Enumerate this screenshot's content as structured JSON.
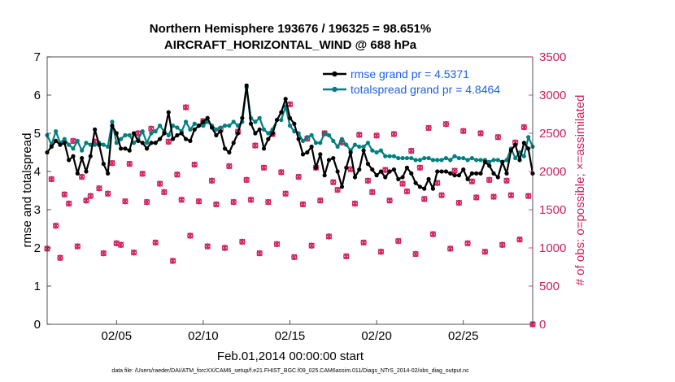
{
  "chart_data": {
    "type": "line",
    "title_line1": "Northern Hemisphere 193676 / 196325 = 98.651%",
    "title_line2": "AIRCRAFT_HORIZONTAL_WIND @ 688 hPa",
    "xlabel": "Feb.01,2014 00:00:00 start",
    "ylabel": "rmse and totalspread",
    "ylabel_right": "# of obs: o=possible; ×=assimilated",
    "xlim": [
      0,
      112
    ],
    "ylim": [
      0,
      7
    ],
    "ylim_right": [
      0,
      3500
    ],
    "x_ticks": [
      {
        "pos": 16,
        "label": "02/05"
      },
      {
        "pos": 36,
        "label": "02/10"
      },
      {
        "pos": 56,
        "label": "02/15"
      },
      {
        "pos": 76,
        "label": "02/20"
      },
      {
        "pos": 96,
        "label": "02/25"
      }
    ],
    "y_ticks": [
      "0",
      "1",
      "2",
      "3",
      "4",
      "5",
      "6",
      "7"
    ],
    "y_ticks_right": [
      "0",
      "500",
      "1000",
      "1500",
      "2000",
      "2500",
      "3000",
      "3500"
    ],
    "legend": [
      {
        "label": "rmse grand pr = 4.5371",
        "color": "#000000"
      },
      {
        "label": "totalspread grand pr = 4.8464",
        "color": "#00807f"
      }
    ],
    "series": [
      {
        "name": "rmse",
        "color": "#000000",
        "values": [
          4.5,
          4.65,
          4.8,
          4.7,
          4.75,
          4.3,
          4.4,
          3.95,
          4.35,
          4.0,
          4.4,
          5.1,
          4.7,
          4.2,
          3.95,
          5.2,
          5.0,
          4.6,
          4.6,
          4.55,
          5.0,
          4.8,
          4.75,
          4.6,
          4.75,
          4.75,
          4.85,
          5.0,
          5.55,
          4.85,
          4.95,
          5.0,
          4.85,
          4.8,
          5.1,
          5.2,
          5.3,
          5.4,
          5.15,
          4.95,
          5.05,
          4.6,
          4.5,
          4.75,
          5.0,
          5.4,
          6.25,
          5.25,
          5.0,
          5.1,
          4.6,
          4.85,
          5.0,
          5.35,
          5.55,
          5.9,
          5.4,
          5.25,
          4.85,
          4.45,
          4.5,
          4.65,
          4.1,
          4.45,
          3.9,
          4.3,
          4.35,
          4.0,
          3.6,
          4.1,
          4.5,
          3.85,
          4.05,
          4.55,
          4.2,
          4.05,
          3.9,
          4.0,
          3.85,
          4.0,
          4.05,
          3.8,
          3.85,
          4.1,
          3.95,
          3.7,
          3.6,
          3.55,
          3.8,
          3.55,
          4.0,
          4.0,
          4.0,
          3.95,
          3.9,
          3.9,
          4.05,
          3.8,
          3.95,
          3.95,
          3.95,
          4.25,
          4.15,
          3.95,
          3.85,
          4.25,
          3.95,
          4.55,
          4.7,
          4.3,
          4.75,
          4.6,
          3.95
        ]
      },
      {
        "name": "totalspread",
        "color": "#00807f",
        "values": [
          4.95,
          4.7,
          5.05,
          4.75,
          4.85,
          4.7,
          4.6,
          4.8,
          4.55,
          4.75,
          4.7,
          4.7,
          4.75,
          4.7,
          4.65,
          5.3,
          4.75,
          4.85,
          4.95,
          4.95,
          4.75,
          4.85,
          5.05,
          4.75,
          5.0,
          5.05,
          5.2,
          5.05,
          4.95,
          5.2,
          5.15,
          5.05,
          5.3,
          5.1,
          5.25,
          5.2,
          5.2,
          5.3,
          5.2,
          5.1,
          5.15,
          5.2,
          5.2,
          5.3,
          5.2,
          5.3,
          6.2,
          5.4,
          5.3,
          5.4,
          5.1,
          5.0,
          5.1,
          5.35,
          5.35,
          5.7,
          5.2,
          5.05,
          5.0,
          4.8,
          4.9,
          4.95,
          4.75,
          4.75,
          5.0,
          4.95,
          4.8,
          4.65,
          4.85,
          4.7,
          4.55,
          4.7,
          4.65,
          4.65,
          4.75,
          4.55,
          4.5,
          4.55,
          4.4,
          4.4,
          4.4,
          4.35,
          4.35,
          4.35,
          4.35,
          4.3,
          4.3,
          4.35,
          4.35,
          4.3,
          4.3,
          4.3,
          4.35,
          4.3,
          4.4,
          4.35,
          4.35,
          4.3,
          4.35,
          4.3,
          4.3,
          4.3,
          4.25,
          4.3,
          4.3,
          4.25,
          4.3,
          4.6,
          4.35,
          4.5,
          4.4,
          4.9,
          4.65
        ]
      }
    ],
    "obs_possible": [
      [
        0,
        990
      ],
      [
        1,
        1900
      ],
      [
        2,
        1290
      ],
      [
        3,
        870
      ],
      [
        4,
        1700
      ],
      [
        5,
        1580
      ],
      [
        6,
        2400
      ],
      [
        7,
        1020
      ],
      [
        8,
        1930
      ],
      [
        9,
        1620
      ],
      [
        10,
        1680
      ],
      [
        11,
        2390
      ],
      [
        12,
        1780
      ],
      [
        13,
        930
      ],
      [
        14,
        1710
      ],
      [
        15,
        2110
      ],
      [
        16,
        1060
      ],
      [
        17,
        1040
      ],
      [
        18,
        1610
      ],
      [
        19,
        2100
      ],
      [
        20,
        940
      ],
      [
        21,
        2500
      ],
      [
        22,
        1970
      ],
      [
        23,
        1600
      ],
      [
        24,
        2560
      ],
      [
        25,
        1070
      ],
      [
        26,
        1840
      ],
      [
        27,
        1730
      ],
      [
        28,
        2390
      ],
      [
        29,
        830
      ],
      [
        30,
        1960
      ],
      [
        31,
        1630
      ],
      [
        32,
        2840
      ],
      [
        33,
        1160
      ],
      [
        34,
        2090
      ],
      [
        35,
        1610
      ],
      [
        36,
        2660
      ],
      [
        37,
        1020
      ],
      [
        38,
        1880
      ],
      [
        39,
        1570
      ],
      [
        40,
        2550
      ],
      [
        41,
        1000
      ],
      [
        42,
        2070
      ],
      [
        43,
        1600
      ],
      [
        44,
        2520
      ],
      [
        45,
        1080
      ],
      [
        46,
        1890
      ],
      [
        47,
        1630
      ],
      [
        48,
        2340
      ],
      [
        49,
        930
      ],
      [
        50,
        2050
      ],
      [
        51,
        1600
      ],
      [
        52,
        2490
      ],
      [
        53,
        1050
      ],
      [
        54,
        1990
      ],
      [
        55,
        1710
      ],
      [
        56,
        2880
      ],
      [
        57,
        880
      ],
      [
        58,
        1930
      ],
      [
        59,
        1570
      ],
      [
        60,
        2430
      ],
      [
        61,
        1030
      ],
      [
        62,
        2050
      ],
      [
        63,
        1620
      ],
      [
        64,
        2500
      ],
      [
        65,
        1150
      ],
      [
        66,
        1860
      ],
      [
        67,
        1760
      ],
      [
        68,
        2380
      ],
      [
        69,
        890
      ],
      [
        70,
        2030
      ],
      [
        71,
        1580
      ],
      [
        72,
        2480
      ],
      [
        73,
        1070
      ],
      [
        74,
        1880
      ],
      [
        75,
        1730
      ],
      [
        76,
        2470
      ],
      [
        77,
        950
      ],
      [
        78,
        2020
      ],
      [
        79,
        1620
      ],
      [
        80,
        2490
      ],
      [
        81,
        1090
      ],
      [
        82,
        1840
      ],
      [
        83,
        1740
      ],
      [
        84,
        2270
      ],
      [
        85,
        920
      ],
      [
        86,
        2050
      ],
      [
        87,
        1640
      ],
      [
        88,
        2570
      ],
      [
        89,
        1180
      ],
      [
        90,
        1850
      ],
      [
        91,
        1690
      ],
      [
        92,
        2620
      ],
      [
        93,
        990
      ],
      [
        94,
        2010
      ],
      [
        95,
        1590
      ],
      [
        96,
        2530
      ],
      [
        97,
        1060
      ],
      [
        98,
        1870
      ],
      [
        99,
        1660
      ],
      [
        100,
        2500
      ],
      [
        101,
        950
      ],
      [
        102,
        1890
      ],
      [
        103,
        1670
      ],
      [
        104,
        2450
      ],
      [
        105,
        1040
      ],
      [
        106,
        1880
      ],
      [
        107,
        1690
      ],
      [
        108,
        2380
      ],
      [
        109,
        1110
      ],
      [
        110,
        2580
      ],
      [
        111,
        1680
      ],
      [
        112,
        0
      ]
    ]
  },
  "footer": {
    "datafile": "data file: /Users/raeder/DAI/ATM_forcXX/CAM6_setup/f.e21.FHIST_BGC.f09_025.CAM6assim.011/Diags_NTrS_2014-02/obs_diag_output.nc"
  },
  "colors": {
    "rmse": "#000000",
    "spread": "#00807f",
    "obs": "#cc1f5c",
    "legend_text": "#1f5fe0"
  }
}
